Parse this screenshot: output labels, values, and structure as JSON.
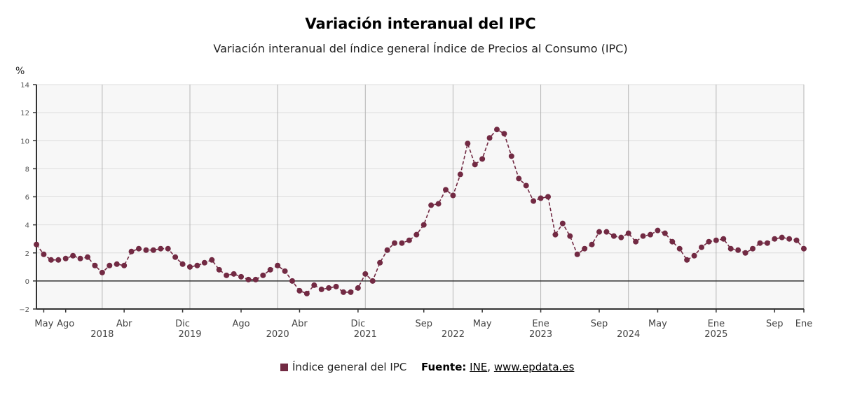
{
  "chart_data": {
    "type": "line",
    "title": "Variación interanual del IPC",
    "subtitle": "Variación interanual del índice general Índice de Precios al Consumo (IPC)",
    "ylabel": "%",
    "ylim": [
      -2,
      14
    ],
    "yticks": [
      -2,
      0,
      2,
      4,
      6,
      8,
      10,
      12,
      14
    ],
    "grid": true,
    "legend_position": "bottom",
    "color": "#722a43",
    "start_month": "2017-04",
    "x_tick_labels": [
      {
        "label": "May",
        "index": 1
      },
      {
        "label": "Ago",
        "index": 4
      },
      {
        "label": "Abr",
        "index": 12
      },
      {
        "label": "Dic",
        "index": 20
      },
      {
        "label": "Ago",
        "index": 28
      },
      {
        "label": "Abr",
        "index": 36
      },
      {
        "label": "Dic",
        "index": 44
      },
      {
        "label": "Sep",
        "index": 53
      },
      {
        "label": "May",
        "index": 61
      },
      {
        "label": "Ene",
        "index": 69
      },
      {
        "label": "Sep",
        "index": 77
      },
      {
        "label": "May",
        "index": 85
      },
      {
        "label": "Ene",
        "index": 93
      },
      {
        "label": "Sep",
        "index": 101
      },
      {
        "label": "Ene",
        "index": 105
      }
    ],
    "year_labels": [
      {
        "label": "2018",
        "index": 9
      },
      {
        "label": "2019",
        "index": 21
      },
      {
        "label": "2020",
        "index": 33
      },
      {
        "label": "2021",
        "index": 45
      },
      {
        "label": "2022",
        "index": 57
      },
      {
        "label": "2023",
        "index": 69
      },
      {
        "label": "2024",
        "index": 81
      },
      {
        "label": "2025",
        "index": 93
      }
    ],
    "series": [
      {
        "name": "Índice general del IPC",
        "values": [
          2.6,
          1.9,
          1.5,
          1.5,
          1.6,
          1.8,
          1.6,
          1.7,
          1.1,
          0.6,
          1.1,
          1.2,
          1.1,
          2.1,
          2.3,
          2.2,
          2.2,
          2.3,
          2.3,
          1.7,
          1.2,
          1.0,
          1.1,
          1.3,
          1.5,
          0.8,
          0.4,
          0.5,
          0.3,
          0.1,
          0.1,
          0.4,
          0.8,
          1.1,
          0.7,
          0.0,
          -0.7,
          -0.9,
          -0.3,
          -0.6,
          -0.5,
          -0.4,
          -0.8,
          -0.8,
          -0.5,
          0.5,
          0.0,
          1.3,
          2.2,
          2.7,
          2.7,
          2.9,
          3.3,
          4.0,
          5.4,
          5.5,
          6.5,
          6.1,
          7.6,
          9.8,
          8.3,
          8.7,
          10.2,
          10.8,
          10.5,
          8.9,
          7.3,
          6.8,
          5.7,
          5.9,
          6.0,
          3.3,
          4.1,
          3.2,
          1.9,
          2.3,
          2.6,
          3.5,
          3.5,
          3.2,
          3.1,
          3.4,
          2.8,
          3.2,
          3.3,
          3.6,
          3.4,
          2.8,
          2.3,
          1.5,
          1.8,
          2.4,
          2.8,
          2.9,
          3.0,
          2.3,
          2.2,
          2.0,
          2.3,
          2.7,
          2.7,
          3.0,
          3.1,
          3.0,
          2.9,
          2.3
        ]
      }
    ]
  },
  "legend": {
    "label": "Índice general del IPC"
  },
  "source": {
    "prefix": "Fuente:",
    "link1": "INE",
    "separator": ",",
    "link2": "www.epdata.es"
  }
}
